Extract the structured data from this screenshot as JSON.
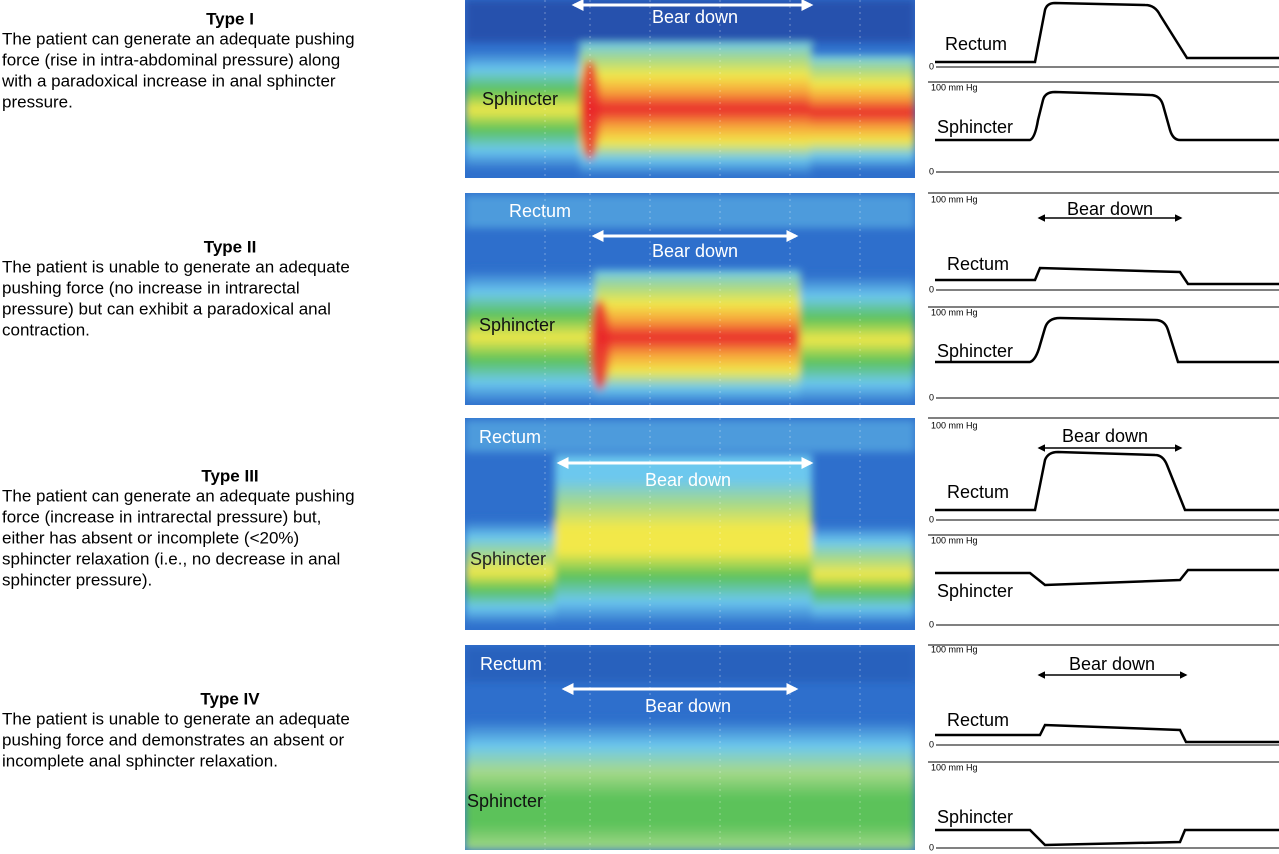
{
  "panels": [
    {
      "title": "Type I",
      "description": [
        "The patient can generate an adequate pushing",
        "force (rise in intra-abdominal pressure) along",
        "with a paradoxical increase in anal sphincter",
        "pressure."
      ],
      "heatmap": {
        "bear_down": "Bear down",
        "sphincter": "Sphincter"
      },
      "traces": {
        "rectum": "Rectum",
        "sphincter": "Sphincter",
        "scale_labels": [
          "0",
          "100 mm Hg",
          "0"
        ]
      }
    },
    {
      "title": "Type II",
      "description": [
        "The patient is unable to generate an adequate",
        "pushing force (no increase in intrarectal",
        "pressure) but can exhibit a paradoxical anal",
        "contraction."
      ],
      "heatmap": {
        "rectum": "Rectum",
        "bear_down": "Bear down",
        "sphincter": "Sphincter"
      },
      "traces": {
        "bear_down": "Bear down",
        "rectum": "Rectum",
        "sphincter": "Sphincter",
        "scale_labels": [
          "100 mm Hg",
          "0",
          "100 mm Hg",
          "0"
        ]
      }
    },
    {
      "title": "Type III",
      "description": [
        "The patient can generate an adequate pushing",
        "force (increase in intrarectal pressure) but,",
        "either has absent or incomplete (<20%)",
        "sphincter relaxation (i.e., no decrease in anal",
        "sphincter pressure)."
      ],
      "heatmap": {
        "rectum": "Rectum",
        "bear_down": "Bear down",
        "sphincter": "Sphincter"
      },
      "traces": {
        "bear_down": "Bear down",
        "rectum": "Rectum",
        "sphincter": "Sphincter",
        "scale_labels": [
          "100 mm Hg",
          "0",
          "100 mm Hg",
          "0"
        ]
      }
    },
    {
      "title": "Type IV",
      "description": [
        "The patient is unable to generate an adequate",
        "pushing force and demonstrates an absent or",
        "incomplete anal sphincter relaxation."
      ],
      "heatmap": {
        "rectum": "Rectum",
        "bear_down": "Bear down",
        "sphincter": "Sphincter"
      },
      "traces": {
        "bear_down": "Bear down",
        "rectum": "Rectum",
        "sphincter": "Sphincter",
        "scale_labels": [
          "100 mm Hg",
          "0",
          "100 mm Hg",
          "0"
        ]
      }
    }
  ]
}
